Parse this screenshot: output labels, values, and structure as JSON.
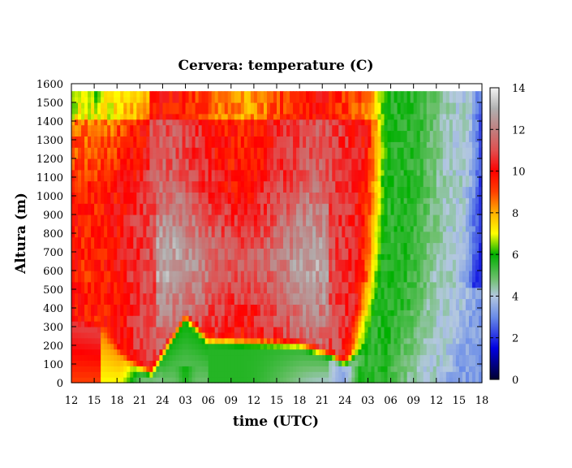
{
  "chart_data": {
    "type": "heatmap",
    "title": "Cervera: temperature (C)",
    "xlabel": "time (UTC)",
    "ylabel": "Altura (m)",
    "x_tick_labels": [
      "12",
      "15",
      "18",
      "21",
      "24",
      "03",
      "06",
      "09",
      "12",
      "15",
      "18",
      "21",
      "24",
      "03",
      "06",
      "09",
      "12",
      "15",
      "18"
    ],
    "y_ticks": [
      0,
      100,
      200,
      300,
      400,
      500,
      600,
      700,
      800,
      900,
      1000,
      1100,
      1200,
      1300,
      1400,
      1500,
      1600
    ],
    "ylim": [
      0,
      1600
    ],
    "data_top_altitude": 1560,
    "colorbar": {
      "range": [
        0,
        14
      ],
      "ticks": [
        0,
        2,
        4,
        6,
        8,
        10,
        12,
        14
      ],
      "stops": [
        {
          "value": 0,
          "color": "#000030"
        },
        {
          "value": 1.5,
          "color": "#0000e0"
        },
        {
          "value": 3,
          "color": "#6a8ce8"
        },
        {
          "value": 4,
          "color": "#b4c8e0"
        },
        {
          "value": 4.8,
          "color": "#70c070"
        },
        {
          "value": 6,
          "color": "#00b000"
        },
        {
          "value": 7,
          "color": "#ffff00"
        },
        {
          "value": 8,
          "color": "#ffb000"
        },
        {
          "value": 9,
          "color": "#ff4000"
        },
        {
          "value": 10,
          "color": "#ff0000"
        },
        {
          "value": 11,
          "color": "#e05050"
        },
        {
          "value": 12,
          "color": "#c08080"
        },
        {
          "value": 13,
          "color": "#b0b0b0"
        },
        {
          "value": 14,
          "color": "#f4f4f4"
        }
      ]
    },
    "grid": false,
    "legend": "colorbar-right"
  }
}
